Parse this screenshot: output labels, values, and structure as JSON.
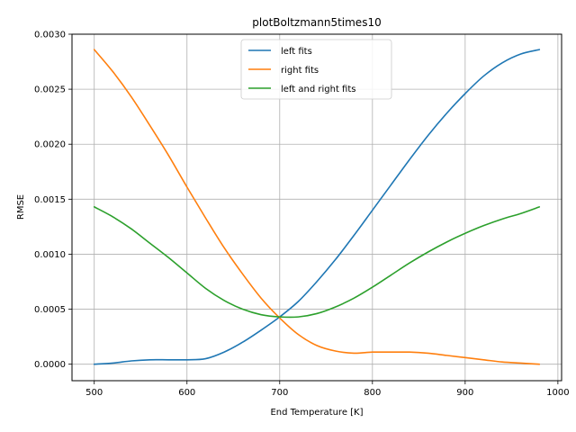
{
  "chart_data": {
    "type": "line",
    "title": "plotBoltzmann5times10",
    "xlabel": "End Temperature [K]",
    "ylabel": "RMSE",
    "xlim": [
      476,
      1004
    ],
    "ylim": [
      -0.00015,
      0.003
    ],
    "xticks": [
      500,
      600,
      700,
      800,
      900,
      1000
    ],
    "yticks": [
      0.0,
      0.0005,
      0.001,
      0.0015,
      0.002,
      0.0025,
      0.003
    ],
    "ytick_labels": [
      "0.0000",
      "0.0005",
      "0.0010",
      "0.0015",
      "0.0020",
      "0.0025",
      "0.0030"
    ],
    "grid": true,
    "legend_position": "top-center",
    "x": [
      500,
      520,
      540,
      560,
      580,
      600,
      620,
      640,
      660,
      680,
      700,
      720,
      740,
      760,
      780,
      800,
      820,
      840,
      860,
      880,
      900,
      920,
      940,
      960,
      980
    ],
    "series": [
      {
        "name": "left fits",
        "color": "#1f77b4",
        "values": [
          0.0,
          1e-05,
          3e-05,
          4e-05,
          4e-05,
          4e-05,
          5e-05,
          0.00011,
          0.0002,
          0.00031,
          0.00043,
          0.00057,
          0.00075,
          0.00095,
          0.00117,
          0.0014,
          0.00163,
          0.00186,
          0.00208,
          0.00228,
          0.00246,
          0.00262,
          0.00274,
          0.00282,
          0.00286
        ]
      },
      {
        "name": "right fits",
        "color": "#ff7f0e",
        "values": [
          0.00286,
          0.00266,
          0.00243,
          0.00217,
          0.0019,
          0.00161,
          0.00133,
          0.00106,
          0.00082,
          0.0006,
          0.00042,
          0.00027,
          0.00017,
          0.00012,
          0.0001,
          0.00011,
          0.00011,
          0.00011,
          0.0001,
          8e-05,
          6e-05,
          4e-05,
          2e-05,
          1e-05,
          0.0
        ]
      },
      {
        "name": "left and right fits",
        "color": "#2ca02c",
        "values": [
          0.00143,
          0.00134,
          0.00123,
          0.0011,
          0.00097,
          0.00083,
          0.00069,
          0.00058,
          0.0005,
          0.00045,
          0.00043,
          0.00043,
          0.00046,
          0.00052,
          0.0006,
          0.0007,
          0.00081,
          0.00092,
          0.00102,
          0.00111,
          0.00119,
          0.00126,
          0.00132,
          0.00137,
          0.00143
        ]
      }
    ]
  }
}
